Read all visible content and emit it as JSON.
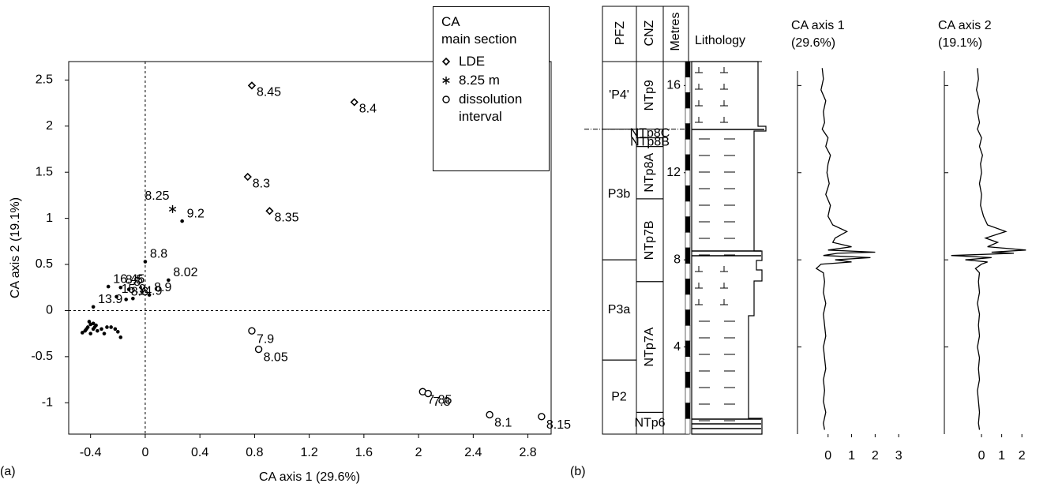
{
  "panel_labels": [
    "(a)",
    "(b)"
  ],
  "chart_data": [
    {
      "type": "scatter",
      "xlabel": "CA axis 1 (29.6%)",
      "ylabel": "CA axis 2 (19.1%)",
      "xlim": [
        -0.56,
        2.97
      ],
      "ylim": [
        -1.34,
        2.7
      ],
      "xticks": [
        -0.4,
        0,
        0.4,
        0.8,
        1.2,
        1.6,
        2,
        2.4,
        2.8
      ],
      "yticks": [
        -1,
        -0.5,
        0,
        0.5,
        1,
        1.5,
        2,
        2.5
      ],
      "legend_title": [
        "CA",
        "main section"
      ],
      "legend_loc": "upper right",
      "color": "#000000",
      "series": [
        {
          "name": "LDE",
          "marker": "diamond",
          "x": [
            0.78,
            1.53,
            0.75,
            0.91
          ],
          "values": [
            2.44,
            2.26,
            1.45,
            1.08
          ],
          "labels": [
            "8.45",
            "8.4",
            "8.3",
            "8.35"
          ]
        },
        {
          "name": "8.25 m",
          "marker": "asterisk",
          "x": [
            0.2
          ],
          "values": [
            1.1
          ],
          "labels": [
            "8.25"
          ]
        },
        {
          "name": "dissolution interval",
          "marker": "circle",
          "x": [
            0.78,
            0.83,
            2.03,
            2.07,
            2.52,
            2.9
          ],
          "values": [
            -0.22,
            -0.42,
            -0.88,
            -0.9,
            -1.13,
            -1.15
          ],
          "labels": [
            "7.9",
            "8.05",
            "7.85",
            "7.8",
            "8.1",
            "8.15"
          ]
        },
        {
          "marker": "dot",
          "x": [
            0.27,
            0,
            0.17,
            0.03,
            -0.27,
            -0.18,
            -0.12,
            -0.21,
            -0.14,
            -0.09,
            -0.38,
            -0.4,
            -0.42,
            -0.38,
            -0.44,
            -0.36,
            -0.4,
            -0.46,
            -0.41,
            -0.35,
            -0.43,
            -0.38,
            -0.32,
            -0.3,
            -0.25,
            -0.22,
            -0.2,
            -0.18,
            -0.28,
            -0.37
          ],
          "values": [
            0.97,
            0.53,
            0.33,
            0.17,
            0.26,
            0.25,
            0.23,
            0.15,
            0.12,
            0.13,
            0.04,
            -0.15,
            -0.18,
            -0.2,
            -0.22,
            -0.16,
            -0.25,
            -0.24,
            -0.12,
            -0.22,
            -0.2,
            -0.14,
            -0.2,
            -0.25,
            -0.18,
            -0.2,
            -0.23,
            -0.29,
            -0.18,
            -0.18
          ],
          "labels": [
            "9.2",
            "8.8",
            "8.02",
            "8.9",
            "16.45",
            "8.5",
            "8",
            "15.9",
            "8.6",
            "14.9",
            "13.9",
            null,
            null,
            null,
            null,
            null,
            null,
            null,
            null,
            null,
            null,
            null,
            null,
            null,
            null,
            null,
            null,
            null,
            null,
            null
          ]
        }
      ]
    },
    {
      "type": "line",
      "title": "CA axis 1",
      "subtitle": "(29.6%)",
      "xlim": [
        -1.3,
        3.8
      ],
      "xticks": [
        0,
        1,
        2,
        3
      ],
      "ylim": [
        0,
        17.1
      ],
      "yticks": [
        4,
        8,
        12,
        16
      ],
      "color": "#000000",
      "y": [
        16.8,
        16.3,
        15.8,
        15.3,
        14.8,
        14.3,
        14.0,
        13.6,
        13.2,
        12.8,
        12.4,
        12.0,
        11.5,
        11.0,
        10.5,
        10.0,
        9.6,
        9.3,
        9.0,
        8.8,
        8.6,
        8.45,
        8.35,
        8.3,
        8.2,
        8.1,
        8.0,
        7.9,
        7.8,
        7.6,
        7.4,
        7.0,
        6.5,
        6.0,
        5.5,
        5.0,
        4.5,
        4.0,
        3.5,
        3.0,
        2.5,
        2.0,
        1.5,
        1.0,
        0.5,
        0.2
      ],
      "values": [
        -0.25,
        -0.2,
        -0.3,
        -0.1,
        -0.2,
        -0.15,
        -0.25,
        0.0,
        -0.1,
        0.1,
        0.0,
        -0.05,
        0.05,
        -0.1,
        0.1,
        0.0,
        0.2,
        0.8,
        0.3,
        0.2,
        1.0,
        0.0,
        2.0,
        0.4,
        -0.2,
        1.8,
        0.3,
        1.0,
        -0.3,
        -0.5,
        -0.2,
        -0.15,
        -0.2,
        -0.1,
        -0.2,
        -0.15,
        -0.1,
        -0.2,
        -0.15,
        -0.1,
        -0.2,
        -0.15,
        -0.2,
        -0.1,
        -0.2,
        -0.15
      ]
    },
    {
      "type": "line",
      "title": "CA axis 2",
      "subtitle": "(19.1%)",
      "xlim": [
        -1.84,
        3.4
      ],
      "xticks": [
        0,
        1,
        2
      ],
      "ylim": [
        0,
        17.1
      ],
      "yticks": [
        4,
        8,
        12,
        16
      ],
      "color": "#000000",
      "y": [
        16.8,
        16.3,
        15.8,
        15.3,
        14.8,
        14.3,
        14.0,
        13.6,
        13.2,
        12.8,
        12.4,
        12.0,
        11.5,
        11.0,
        10.5,
        10.0,
        9.6,
        9.3,
        9.0,
        8.8,
        8.6,
        8.45,
        8.35,
        8.3,
        8.2,
        8.1,
        8.0,
        7.9,
        7.8,
        7.6,
        7.4,
        7.0,
        6.5,
        6.0,
        5.5,
        5.0,
        4.5,
        4.0,
        3.5,
        3.0,
        2.5,
        2.0,
        1.5,
        1.0,
        0.5,
        0.2
      ],
      "values": [
        -0.2,
        -0.15,
        -0.25,
        -0.1,
        -0.2,
        -0.1,
        -0.2,
        0.0,
        -0.1,
        0.05,
        -0.05,
        0.0,
        -0.1,
        0.0,
        -0.05,
        0.1,
        0.3,
        1.2,
        0.2,
        0.8,
        0.3,
        2.2,
        0.5,
        1.6,
        -1.5,
        0.5,
        -0.8,
        0.3,
        0.0,
        -0.3,
        -0.1,
        -0.15,
        -0.1,
        -0.2,
        -0.1,
        -0.15,
        -0.1,
        -0.2,
        -0.1,
        -0.15,
        -0.1,
        -0.2,
        -0.15,
        -0.1,
        -0.15,
        -0.1
      ]
    }
  ],
  "strat_column": {
    "headers": [
      "PFZ",
      "CNZ",
      "Metres",
      "Lithology"
    ],
    "ylim": [
      0,
      17.1
    ],
    "yticks": [
      4,
      8,
      12,
      16
    ],
    "pfz": [
      {
        "label": "'P4'",
        "base": 14.0,
        "top": 17.1
      },
      {
        "label": "P3b",
        "base": 8.0,
        "top": 14.0
      },
      {
        "label": "P3a",
        "base": 3.4,
        "top": 8.0
      },
      {
        "label": "P2",
        "base": 0,
        "top": 3.4
      }
    ],
    "cnz": [
      {
        "label": "NTp9",
        "base": 14.0,
        "top": 17.1
      },
      {
        "label": "NTp8C",
        "base": 13.6,
        "top": 14.0
      },
      {
        "label": "NTp8B",
        "base": 13.2,
        "top": 13.6
      },
      {
        "label": "NTp8A",
        "base": 10.8,
        "top": 13.2
      },
      {
        "label": "NTp7B",
        "base": 7.0,
        "top": 10.8
      },
      {
        "label": "NTp7A",
        "base": 1.0,
        "top": 7.0
      },
      {
        "label": "NTp6",
        "base": 0,
        "top": 1.0
      }
    ]
  }
}
